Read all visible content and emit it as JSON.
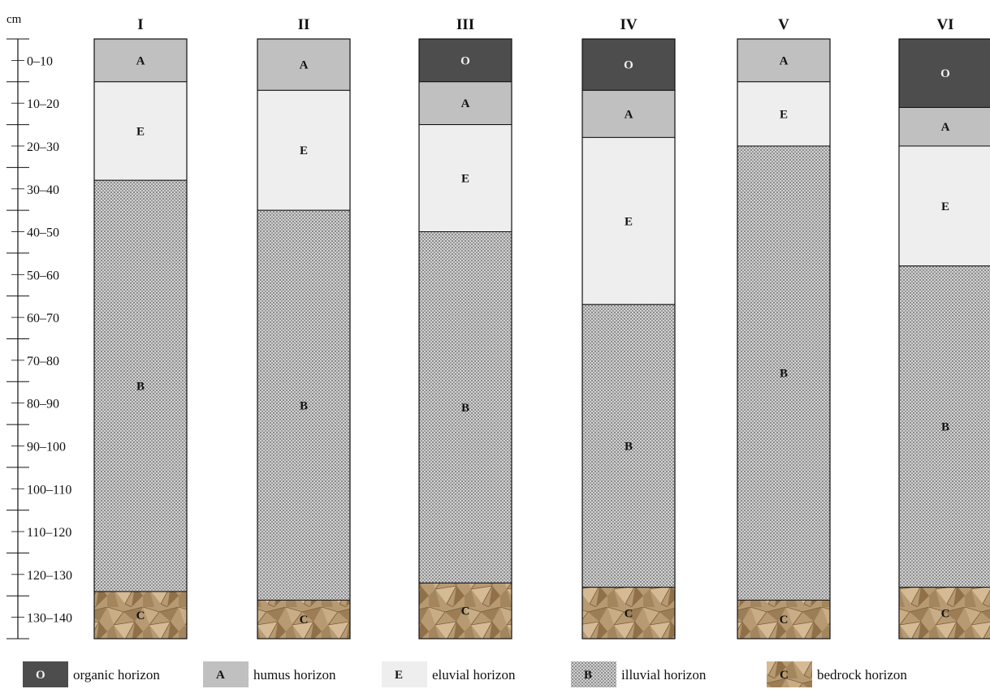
{
  "axis": {
    "unit": "cm",
    "depth_max_cm": 140,
    "depth_labels": [
      "0–10",
      "10–20",
      "20–30",
      "30–40",
      "40–50",
      "50–60",
      "60–70",
      "70–80",
      "80–90",
      "90–100",
      "100–110",
      "110–120",
      "120–130",
      "130–140"
    ]
  },
  "colors": {
    "O": "#4d4d4d",
    "A": "#c0c0c0",
    "E": "#eeeeee",
    "B": "#bdbdbd",
    "C": "#b89a72",
    "outline": "#111111"
  },
  "profiles": [
    {
      "id": "I",
      "horizons": [
        {
          "code": "A",
          "top": 0,
          "bottom": 10
        },
        {
          "code": "E",
          "top": 10,
          "bottom": 33
        },
        {
          "code": "B",
          "top": 33,
          "bottom": 129
        },
        {
          "code": "C",
          "top": 129,
          "bottom": 140
        }
      ]
    },
    {
      "id": "II",
      "horizons": [
        {
          "code": "A",
          "top": 0,
          "bottom": 12
        },
        {
          "code": "E",
          "top": 12,
          "bottom": 40
        },
        {
          "code": "B",
          "top": 40,
          "bottom": 131
        },
        {
          "code": "C",
          "top": 131,
          "bottom": 140
        }
      ]
    },
    {
      "id": "III",
      "horizons": [
        {
          "code": "O",
          "top": 0,
          "bottom": 10
        },
        {
          "code": "A",
          "top": 10,
          "bottom": 20
        },
        {
          "code": "E",
          "top": 20,
          "bottom": 45
        },
        {
          "code": "B",
          "top": 45,
          "bottom": 127
        },
        {
          "code": "C",
          "top": 127,
          "bottom": 140
        }
      ]
    },
    {
      "id": "IV",
      "horizons": [
        {
          "code": "O",
          "top": 0,
          "bottom": 12
        },
        {
          "code": "A",
          "top": 12,
          "bottom": 23
        },
        {
          "code": "E",
          "top": 23,
          "bottom": 62
        },
        {
          "code": "B",
          "top": 62,
          "bottom": 128
        },
        {
          "code": "C",
          "top": 128,
          "bottom": 140
        }
      ]
    },
    {
      "id": "V",
      "horizons": [
        {
          "code": "A",
          "top": 0,
          "bottom": 10
        },
        {
          "code": "E",
          "top": 10,
          "bottom": 25
        },
        {
          "code": "B",
          "top": 25,
          "bottom": 131
        },
        {
          "code": "C",
          "top": 131,
          "bottom": 140
        }
      ]
    },
    {
      "id": "VI",
      "horizons": [
        {
          "code": "O",
          "top": 0,
          "bottom": 16
        },
        {
          "code": "A",
          "top": 16,
          "bottom": 25
        },
        {
          "code": "E",
          "top": 25,
          "bottom": 53
        },
        {
          "code": "B",
          "top": 53,
          "bottom": 128
        },
        {
          "code": "C",
          "top": 128,
          "bottom": 140
        }
      ]
    }
  ],
  "legend": [
    {
      "code": "O",
      "label": "organic horizon"
    },
    {
      "code": "A",
      "label": "humus horizon"
    },
    {
      "code": "E",
      "label": "eluvial horizon"
    },
    {
      "code": "B",
      "label": "illuvial horizon"
    },
    {
      "code": "C",
      "label": "bedrock horizon"
    }
  ]
}
